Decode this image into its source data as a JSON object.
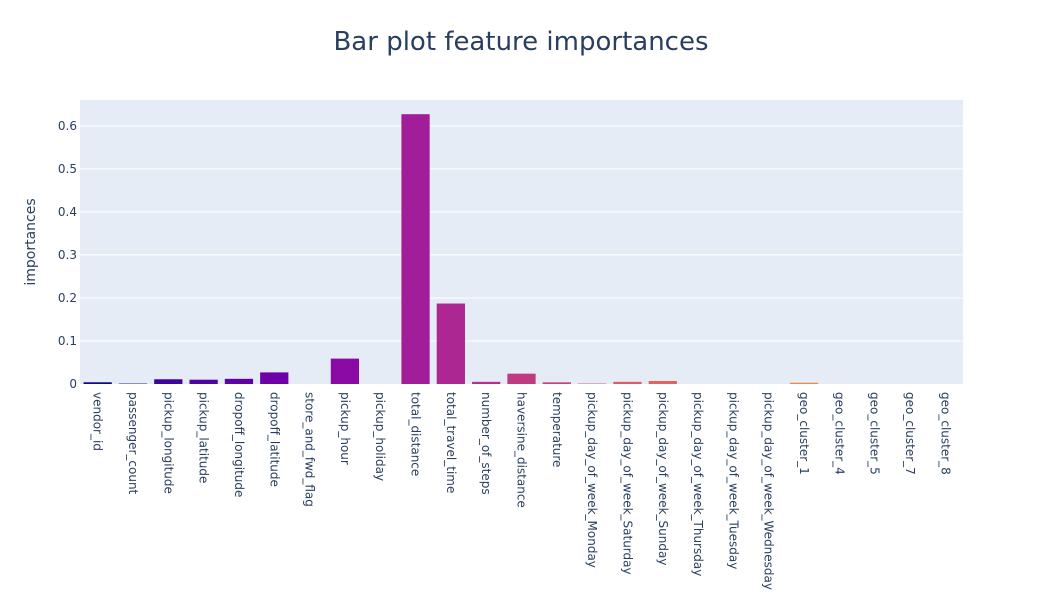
{
  "chart_data": {
    "type": "bar",
    "title": "Bar plot feature importances",
    "xlabel": "",
    "ylabel": "importances",
    "ylim": [
      0,
      0.66
    ],
    "yticks": [
      0,
      0.1,
      0.2,
      0.3,
      0.4,
      0.5,
      0.6
    ],
    "ytick_labels": [
      "0",
      "0.1",
      "0.2",
      "0.3",
      "0.4",
      "0.5",
      "0.6"
    ],
    "grid": true,
    "categories": [
      "vendor_id",
      "passenger_count",
      "pickup_longitude",
      "pickup_latitude",
      "dropoff_longitude",
      "dropoff_latitude",
      "store_and_fwd_flag",
      "pickup_hour",
      "pickup_holiday",
      "total_distance",
      "total_travel_time",
      "number_of_steps",
      "haversine_distance",
      "temperature",
      "pickup_day_of_week_Monday",
      "pickup_day_of_week_Saturday",
      "pickup_day_of_week_Sunday",
      "pickup_day_of_week_Thursday",
      "pickup_day_of_week_Tuesday",
      "pickup_day_of_week_Wednesday",
      "geo_cluster_1",
      "geo_cluster_4",
      "geo_cluster_5",
      "geo_cluster_7",
      "geo_cluster_8"
    ],
    "values": [
      0.004,
      0.001,
      0.011,
      0.01,
      0.012,
      0.027,
      0.0,
      0.059,
      0.0,
      0.627,
      0.187,
      0.005,
      0.024,
      0.004,
      0.001,
      0.005,
      0.007,
      0.0,
      0.0,
      0.0,
      0.003,
      0.0,
      0.0,
      0.0,
      0.0
    ],
    "colors": [
      "#0d0887",
      "#1f0c93",
      "#3e049c",
      "#5002a2",
      "#5e01a6",
      "#6e00a8",
      "#7e03a8",
      "#8b0aa5",
      "#970c9e",
      "#a21d9a",
      "#ad2793",
      "#b72f8c",
      "#c03a83",
      "#cb4679",
      "#d35171",
      "#da5b69",
      "#e16462",
      "#e66c5c",
      "#eb7655",
      "#f0804e",
      "#f48849",
      "#f79342",
      "#f99b3e",
      "#fba238",
      "#fdaf31"
    ],
    "plot_background": "#e5ecf6",
    "gridline_color": "#ffffff",
    "text_color": "#2a3f5f"
  }
}
